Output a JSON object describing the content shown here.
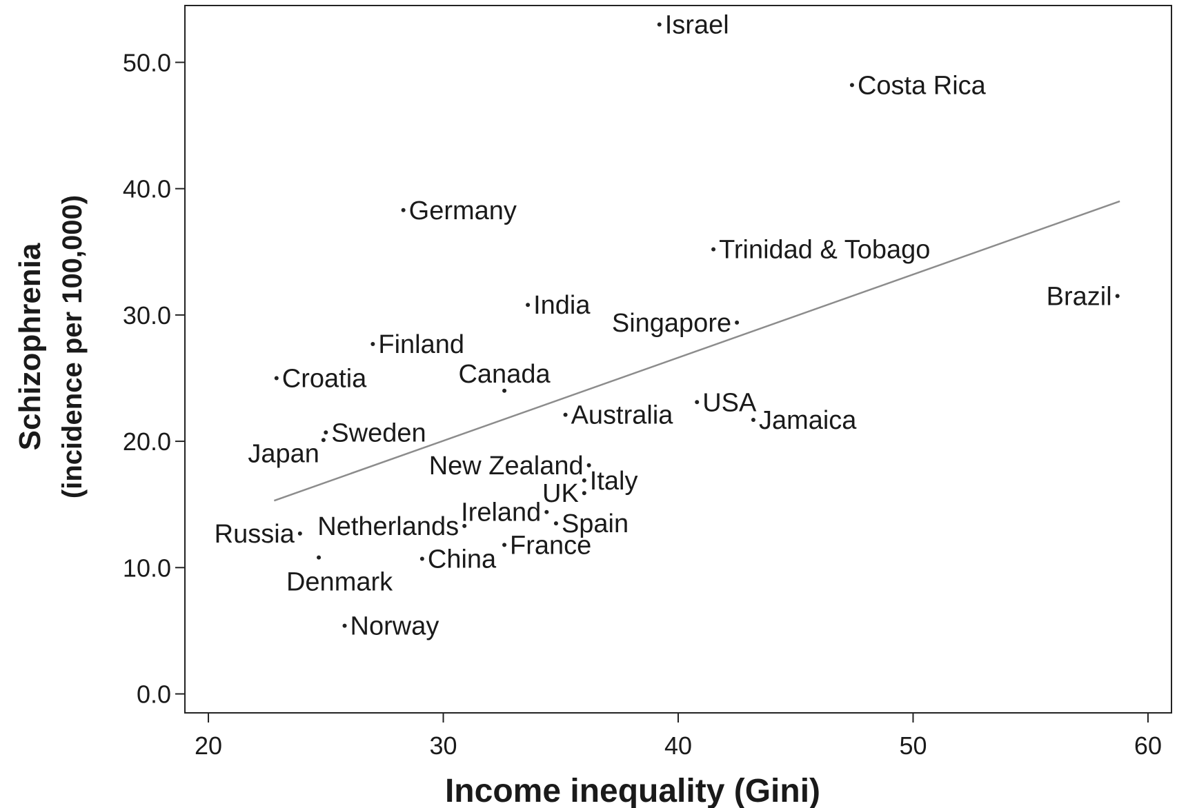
{
  "chart_data": {
    "type": "scatter",
    "title": "",
    "xlabel": "Income inequality (Gini)",
    "ylabel_line1": "Schizophrenia",
    "ylabel_line2": "(incidence per 100,000)",
    "xlim": [
      19,
      61
    ],
    "ylim": [
      -1.5,
      54.5
    ],
    "xticks": [
      20,
      30,
      40,
      50,
      60
    ],
    "xtick_labels": [
      "20",
      "30",
      "40",
      "50",
      "60"
    ],
    "yticks": [
      0,
      10,
      20,
      30,
      40,
      50
    ],
    "ytick_labels": [
      "0.0",
      "10.0",
      "20.0",
      "30.0",
      "40.0",
      "50.0"
    ],
    "grid": false,
    "legend": false,
    "points": [
      {
        "label": "Israel",
        "x": 39.2,
        "y": 53.0,
        "side": "right"
      },
      {
        "label": "Costa Rica",
        "x": 47.4,
        "y": 48.2,
        "side": "right"
      },
      {
        "label": "Germany",
        "x": 28.3,
        "y": 38.3,
        "side": "right"
      },
      {
        "label": "Trinidad & Tobago",
        "x": 41.5,
        "y": 35.2,
        "side": "right"
      },
      {
        "label": "Brazil",
        "x": 58.7,
        "y": 31.5,
        "side": "left"
      },
      {
        "label": "India",
        "x": 33.6,
        "y": 30.8,
        "side": "right"
      },
      {
        "label": "Singapore",
        "x": 42.5,
        "y": 29.4,
        "side": "left"
      },
      {
        "label": "Finland",
        "x": 27.0,
        "y": 27.7,
        "side": "right"
      },
      {
        "label": "Croatia",
        "x": 22.9,
        "y": 25.0,
        "side": "right"
      },
      {
        "label": "Canada",
        "x": 32.6,
        "y": 24.0,
        "side": "above"
      },
      {
        "label": "USA",
        "x": 40.8,
        "y": 23.1,
        "side": "right"
      },
      {
        "label": "Australia",
        "x": 35.2,
        "y": 22.1,
        "side": "right"
      },
      {
        "label": "Jamaica",
        "x": 43.2,
        "y": 21.7,
        "side": "right"
      },
      {
        "label": "Sweden",
        "x": 25.0,
        "y": 20.7,
        "side": "right"
      },
      {
        "label": "Japan",
        "x": 24.9,
        "y": 20.1,
        "side": "below-left"
      },
      {
        "label": "New Zealand",
        "x": 36.2,
        "y": 18.1,
        "side": "left"
      },
      {
        "label": "Italy",
        "x": 36.0,
        "y": 16.9,
        "side": "right"
      },
      {
        "label": "UK",
        "x": 36.0,
        "y": 15.9,
        "side": "left"
      },
      {
        "label": "Ireland",
        "x": 34.4,
        "y": 14.4,
        "side": "left"
      },
      {
        "label": "Spain",
        "x": 34.8,
        "y": 13.5,
        "side": "right"
      },
      {
        "label": "Netherlands",
        "x": 30.9,
        "y": 13.3,
        "side": "left"
      },
      {
        "label": "Russia",
        "x": 23.9,
        "y": 12.7,
        "side": "left"
      },
      {
        "label": "France",
        "x": 32.6,
        "y": 11.8,
        "side": "right"
      },
      {
        "label": "China",
        "x": 29.1,
        "y": 10.7,
        "side": "right"
      },
      {
        "label": "Denmark",
        "x": 24.7,
        "y": 10.8,
        "side": "below"
      },
      {
        "label": "Norway",
        "x": 25.8,
        "y": 5.4,
        "side": "right"
      }
    ],
    "fit_line": {
      "x": [
        22.8,
        58.8
      ],
      "y": [
        15.3,
        39.0
      ]
    }
  },
  "colors": {
    "axis": "#222222",
    "text": "#1a1a1a",
    "point": "#222222",
    "fit_line": "#8c8c8c",
    "background": "#ffffff"
  }
}
